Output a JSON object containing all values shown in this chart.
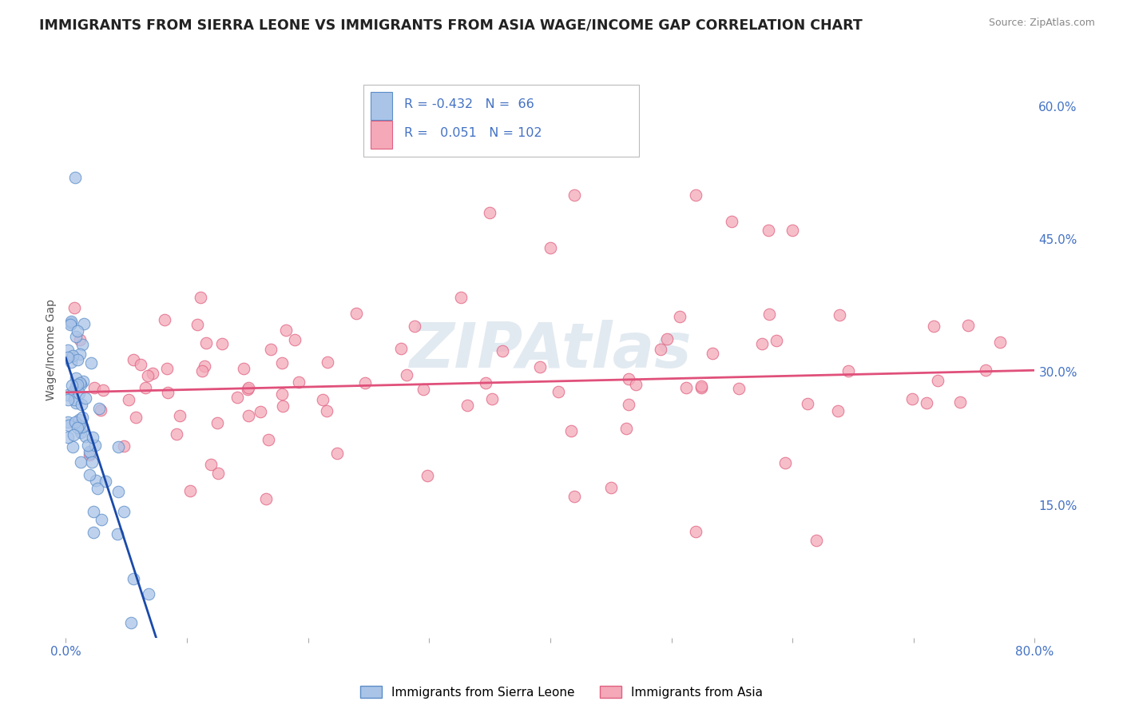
{
  "title": "IMMIGRANTS FROM SIERRA LEONE VS IMMIGRANTS FROM ASIA WAGE/INCOME GAP CORRELATION CHART",
  "source": "Source: ZipAtlas.com",
  "ylabel": "Wage/Income Gap",
  "xlim": [
    0.0,
    0.8
  ],
  "ylim": [
    0.0,
    0.65
  ],
  "yticks_right": [
    0.15,
    0.3,
    0.45,
    0.6
  ],
  "ytick_right_labels": [
    "15.0%",
    "30.0%",
    "45.0%",
    "60.0%"
  ],
  "sierra_leone_color": "#aac4e8",
  "sierra_leone_edge": "#5b8dc8",
  "asia_color": "#f4a8b8",
  "asia_edge": "#e06080",
  "trend_sierra_color": "#1a4aaa",
  "trend_asia_color": "#e0507a",
  "R_sierra": -0.432,
  "N_sierra": 66,
  "R_asia": 0.051,
  "N_asia": 102,
  "watermark": "ZIPAtlas",
  "bg_color": "#ffffff",
  "grid_color": "#cccccc",
  "label_color": "#4472C4",
  "legend_label_color": "#4472C4"
}
